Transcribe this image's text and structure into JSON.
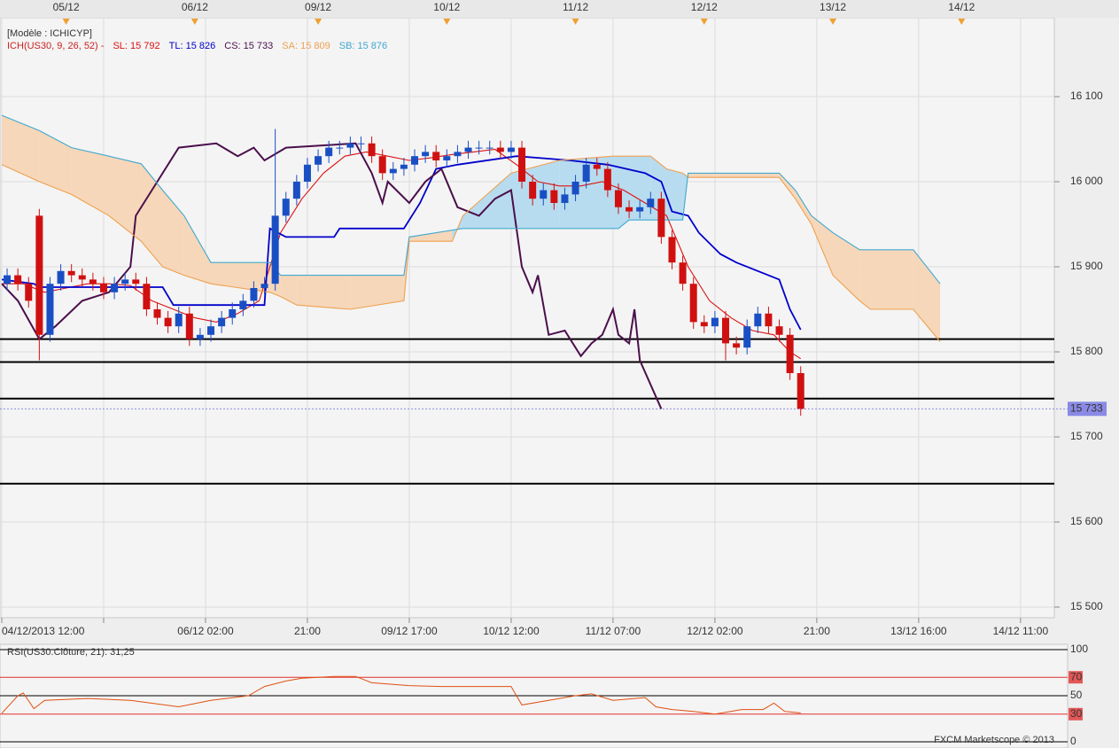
{
  "chart_data": [
    {
      "type": "candlestick",
      "model_label": "[Modèle : ICHICYP]",
      "indicator_label": "ICH(US30, 9, 26, 52) -",
      "indicator_color": "#cc2222",
      "legend": "top-left",
      "grid": true,
      "xlim": [
        -0.33,
        196.3
      ],
      "xticks": [
        {
          "value": 0,
          "label": "04/12/2013 12:00"
        },
        {
          "value": 19,
          "label": null
        },
        {
          "value": 38,
          "label": "06/12 02:00"
        },
        {
          "value": 57,
          "label": "21:00"
        },
        {
          "value": 76,
          "label": "09/12 17:00"
        },
        {
          "value": 95,
          "label": "10/12 12:00"
        },
        {
          "value": 114,
          "label": "11/12 07:00"
        },
        {
          "value": 133,
          "label": "12/12 02:00"
        },
        {
          "value": 152,
          "label": "21:00"
        },
        {
          "value": 171,
          "label": "13/12 16:00"
        },
        {
          "value": 190,
          "label": "14/12 11:00"
        }
      ],
      "date_markers": [
        {
          "value": 12,
          "label": "05/12"
        },
        {
          "value": 36,
          "label": "06/12"
        },
        {
          "value": 59,
          "label": "09/12"
        },
        {
          "value": 83,
          "label": "10/12"
        },
        {
          "value": 107,
          "label": "11/12"
        },
        {
          "value": 131,
          "label": "12/12"
        },
        {
          "value": 155,
          "label": "13/12"
        },
        {
          "value": 179,
          "label": "14/12"
        }
      ],
      "marker_color": "#f0a030",
      "ylim": [
        15487.5,
        16192.7
      ],
      "yticks": [
        {
          "value": 15500,
          "label": "15 500"
        },
        {
          "value": 15600,
          "label": "15 600"
        },
        {
          "value": 15700,
          "label": "15 700"
        },
        {
          "value": 15800,
          "label": "15 800"
        },
        {
          "value": 15900,
          "label": "15 900"
        },
        {
          "value": 16000,
          "label": "16 000"
        },
        {
          "value": 16100,
          "label": "16 100"
        }
      ],
      "candles": {
        "x": [
          1,
          3,
          5,
          7,
          9,
          11,
          13,
          15,
          17,
          19,
          21,
          23,
          25,
          27,
          29,
          31,
          33,
          35,
          37,
          39,
          41,
          43,
          45,
          47,
          49,
          51,
          53,
          55,
          57,
          59,
          61,
          63,
          65,
          67,
          69,
          71,
          73,
          75,
          77,
          79,
          81,
          83,
          85,
          87,
          89,
          91,
          93,
          95,
          97,
          99,
          101,
          103,
          105,
          107,
          109,
          111,
          113,
          115,
          117,
          119,
          121,
          123,
          125,
          127,
          129,
          131,
          133,
          135,
          137,
          139,
          141,
          143,
          145,
          147,
          149
        ],
        "open": [
          15880,
          15890,
          15880,
          15960,
          15820,
          15880,
          15895,
          15890,
          15885,
          15880,
          15870,
          15880,
          15885,
          15880,
          15850,
          15840,
          15830,
          15845,
          15815,
          15820,
          15830,
          15840,
          15850,
          15860,
          15875,
          15880,
          15960,
          15980,
          16000,
          16020,
          16030,
          16040,
          16040,
          16045,
          16045,
          16030,
          16010,
          16015,
          16020,
          16030,
          16035,
          16025,
          16030,
          16035,
          16040,
          16040,
          16040,
          16035,
          16040,
          16000,
          15980,
          15990,
          15975,
          15985,
          16000,
          16020,
          16015,
          15990,
          15970,
          15965,
          15970,
          15980,
          15935,
          15905,
          15880,
          15835,
          15830,
          15840,
          15810,
          15805,
          15830,
          15845,
          15830,
          15820,
          15775
        ],
        "high": [
          15898,
          15898,
          15888,
          15968,
          15888,
          15903,
          15903,
          15898,
          15893,
          15888,
          15888,
          15893,
          15893,
          15888,
          15858,
          15848,
          15853,
          15853,
          15828,
          15838,
          15848,
          15858,
          15868,
          15883,
          15888,
          16062,
          15988,
          16008,
          16028,
          16038,
          16048,
          16048,
          16053,
          16053,
          16053,
          16038,
          16023,
          16028,
          16038,
          16043,
          16043,
          16038,
          16043,
          16048,
          16048,
          16048,
          16048,
          16048,
          16048,
          16008,
          15998,
          15998,
          15993,
          16008,
          16028,
          16028,
          16023,
          15998,
          15978,
          15978,
          15988,
          15988,
          15943,
          15913,
          15888,
          15843,
          15848,
          15848,
          15818,
          15838,
          15853,
          15853,
          15838,
          15828,
          15783
        ],
        "low": [
          15872,
          15872,
          15852,
          15790,
          15812,
          15872,
          15882,
          15877,
          15872,
          15862,
          15862,
          15872,
          15872,
          15842,
          15832,
          15822,
          15822,
          15807,
          15807,
          15812,
          15822,
          15832,
          15842,
          15852,
          15867,
          15872,
          15952,
          15972,
          15992,
          16012,
          16022,
          16032,
          16032,
          16037,
          16022,
          16002,
          16002,
          16007,
          16012,
          16022,
          16017,
          16017,
          16022,
          16027,
          16032,
          16032,
          16027,
          16027,
          15992,
          15972,
          15972,
          15967,
          15967,
          15977,
          15992,
          16007,
          15982,
          15962,
          15957,
          15957,
          15962,
          15927,
          15897,
          15872,
          15827,
          15822,
          15822,
          15790,
          15797,
          15797,
          15822,
          15822,
          15812,
          15767,
          15725
        ],
        "close": [
          15890,
          15880,
          15860,
          15820,
          15880,
          15895,
          15890,
          15885,
          15880,
          15870,
          15880,
          15885,
          15880,
          15850,
          15840,
          15830,
          15845,
          15815,
          15820,
          15830,
          15840,
          15850,
          15860,
          15875,
          15880,
          15960,
          15980,
          16000,
          16020,
          16030,
          16040,
          16040,
          16045,
          16045,
          16030,
          16010,
          16015,
          16020,
          16030,
          16035,
          16025,
          16030,
          16035,
          16040,
          16040,
          16040,
          16035,
          16040,
          16000,
          15980,
          15990,
          15975,
          15985,
          16000,
          16020,
          16015,
          15990,
          15970,
          15965,
          15970,
          15980,
          15935,
          15905,
          15880,
          15835,
          15830,
          15840,
          15810,
          15805,
          15830,
          15845,
          15830,
          15820,
          15775,
          15733
        ],
        "up_color": "#1a4fc4",
        "down_color": "#d01010"
      },
      "series": [
        {
          "name": "SL: 15 792",
          "color": "#dd1111",
          "x": [
            0,
            4,
            8,
            12,
            16,
            20,
            24,
            28,
            32,
            36,
            40,
            44,
            48,
            50,
            52,
            56,
            60,
            64,
            68,
            72,
            76,
            80,
            84,
            88,
            92,
            96,
            100,
            104,
            108,
            112,
            116,
            120,
            124,
            128,
            132,
            136,
            140,
            144,
            147,
            149
          ],
          "values": [
            15880,
            15880,
            15870,
            15875,
            15880,
            15880,
            15878,
            15860,
            15850,
            15840,
            15835,
            15845,
            15860,
            15900,
            15940,
            15980,
            16010,
            16030,
            16035,
            16030,
            16025,
            16028,
            16032,
            16035,
            16038,
            16020,
            16000,
            15995,
            15995,
            16000,
            15990,
            15975,
            15960,
            15900,
            15860,
            15840,
            15825,
            15820,
            15800,
            15792
          ]
        },
        {
          "name": "TL: 15 826",
          "color": "#0000cc",
          "x": [
            0,
            6,
            7,
            30,
            32,
            49,
            50,
            53,
            62,
            63,
            75,
            78,
            81,
            85,
            96,
            106,
            113,
            120,
            123,
            125,
            128,
            130,
            134,
            137,
            145,
            147,
            149
          ],
          "values": [
            15885,
            15880,
            15876,
            15876,
            15855,
            15855,
            15945,
            15935,
            15935,
            15945,
            15945,
            15975,
            16015,
            16020,
            16030,
            16025,
            16020,
            16010,
            16000,
            15965,
            15960,
            15940,
            15915,
            15905,
            15885,
            15850,
            15826
          ]
        },
        {
          "name": "CS: 15 733",
          "color": "#4b0f4b",
          "x": [
            0,
            3,
            7,
            10,
            15,
            20,
            24,
            25,
            29,
            33,
            40,
            44,
            47,
            49,
            53,
            66,
            69,
            71,
            72,
            76,
            79,
            82,
            85,
            89,
            92,
            95,
            97,
            99,
            100,
            102,
            105,
            108,
            110,
            112,
            114,
            115,
            117,
            118,
            119,
            123
          ],
          "values": [
            15880,
            15860,
            15815,
            15830,
            15860,
            15870,
            15900,
            15960,
            16000,
            16040,
            16045,
            16030,
            16040,
            16025,
            16040,
            16045,
            16010,
            15975,
            16000,
            15975,
            16000,
            16015,
            15970,
            15960,
            15980,
            15990,
            15900,
            15870,
            15890,
            15820,
            15825,
            15795,
            15810,
            15820,
            15850,
            15820,
            15810,
            15850,
            15790,
            15733
          ]
        },
        {
          "name": "SA: 15 809",
          "color": "#f0a050",
          "x": [
            0,
            7,
            13,
            20,
            26,
            30,
            34,
            39,
            50,
            52,
            55,
            65,
            75,
            76,
            84,
            86,
            95,
            104,
            114,
            115,
            117,
            121,
            124,
            127,
            128,
            145,
            148,
            151,
            155,
            160,
            162,
            170,
            175
          ],
          "values": [
            16020,
            16000,
            15985,
            15960,
            15930,
            15900,
            15890,
            15880,
            15870,
            15865,
            15855,
            15850,
            15860,
            15930,
            15930,
            15960,
            16010,
            16025,
            16030,
            16030,
            16030,
            16030,
            16015,
            16010,
            16005,
            16005,
            15980,
            15950,
            15890,
            15860,
            15850,
            15850,
            15812
          ]
        },
        {
          "name": "SB: 15 876",
          "color": "#40a8d0",
          "x": [
            0,
            7,
            13,
            20,
            26,
            30,
            34,
            39,
            50,
            52,
            55,
            65,
            75,
            76,
            84,
            86,
            95,
            104,
            114,
            115,
            117,
            121,
            124,
            127,
            128,
            145,
            148,
            151,
            155,
            160,
            162,
            170,
            175
          ],
          "values": [
            16078,
            16060,
            16040,
            16030,
            16021,
            15990,
            15960,
            15905,
            15905,
            15890,
            15890,
            15890,
            15890,
            15935,
            15943,
            15945,
            15945,
            15945,
            15945,
            15945,
            15955,
            15955,
            15955,
            15955,
            16010,
            16010,
            15990,
            15960,
            15940,
            15920,
            15920,
            15920,
            15880
          ]
        }
      ],
      "cloud_colors": {
        "up": "#b7dcef",
        "down": "#f6d7b9"
      },
      "hlines": [
        15815,
        15788,
        15745,
        15645
      ],
      "hline_color": "#000000",
      "last_price": {
        "value": 15733,
        "label": "15 733",
        "color": "#8a8ae6"
      }
    },
    {
      "type": "line",
      "title": "RSI(US30.Clôture, 21): 31,25",
      "title_color": "#c04020",
      "footer": "FXCM Marketscope © 2013",
      "xlim": [
        -0.33,
        196.3
      ],
      "ylim": [
        0,
        100
      ],
      "yticks": [
        0,
        30,
        50,
        70,
        100
      ],
      "tick_colors": [
        "#000000",
        "#e03030",
        "#000000",
        "#e03030",
        "#000000"
      ],
      "color": "#e05010",
      "x": [
        0,
        3,
        4,
        6,
        8,
        16,
        24,
        33,
        39,
        46,
        49,
        53,
        56,
        62,
        66,
        69,
        76,
        82,
        89,
        95,
        97,
        102,
        107,
        110,
        114,
        120,
        122,
        125,
        129,
        133,
        138,
        142,
        144,
        146,
        149
      ],
      "values": [
        31,
        50,
        53,
        36,
        45,
        47,
        45,
        38,
        45,
        50,
        60,
        66,
        69,
        71,
        71,
        64,
        61,
        60,
        60,
        60,
        40,
        45,
        50,
        52,
        45,
        48,
        38,
        35,
        33,
        30,
        35,
        35,
        42,
        33,
        31.25
      ]
    }
  ]
}
